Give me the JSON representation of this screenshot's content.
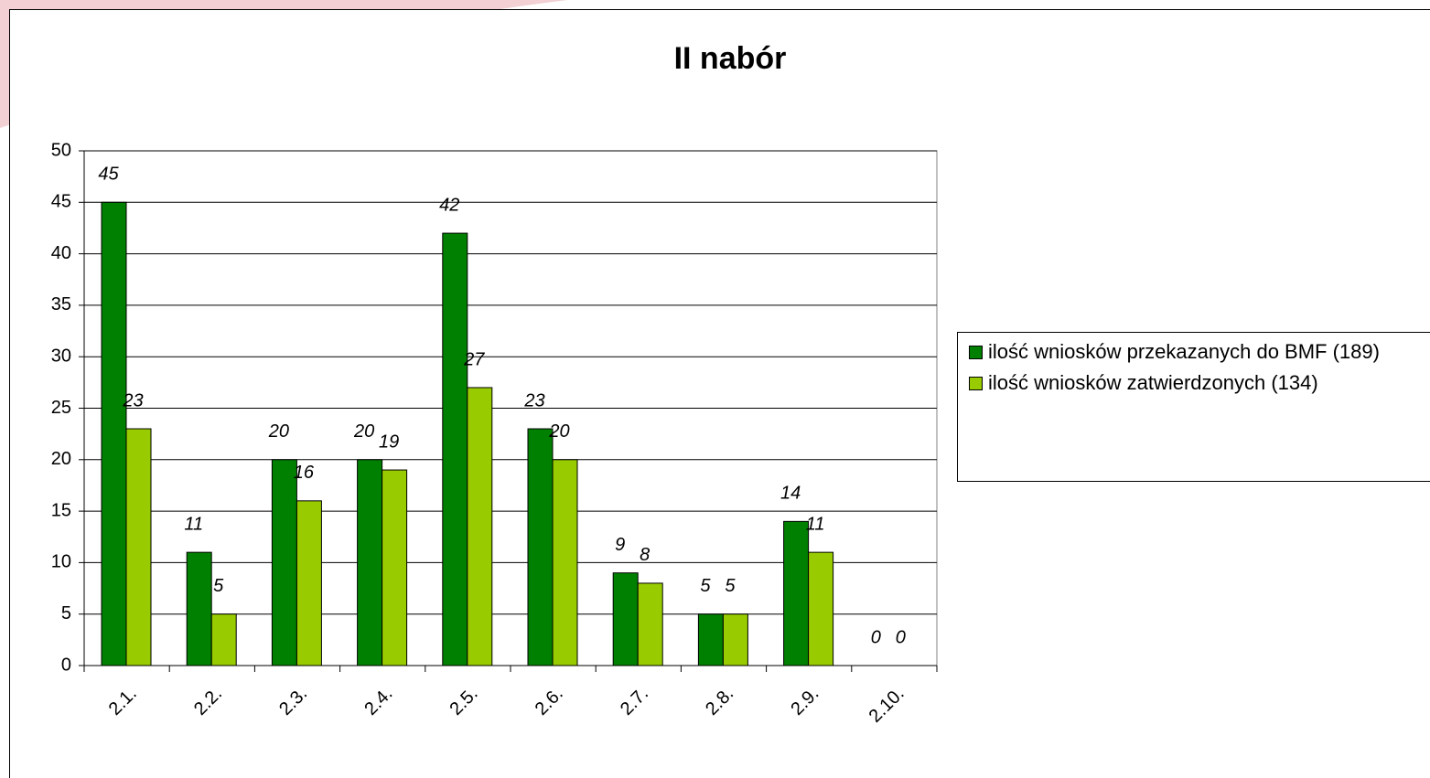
{
  "chart_data": {
    "type": "bar",
    "title": "II nabór",
    "categories": [
      "2.1.",
      "2.2.",
      "2.3.",
      "2.4.",
      "2.5.",
      "2.6.",
      "2.7.",
      "2.8.",
      "2.9.",
      "2.10."
    ],
    "series": [
      {
        "name": "ilość wniosków przekazanych do BMF (189)",
        "color": "#008000",
        "values": [
          45,
          11,
          20,
          20,
          42,
          23,
          9,
          5,
          14,
          0
        ]
      },
      {
        "name": "ilość wniosków zatwierdzonych (134)",
        "color": "#99cc00",
        "values": [
          23,
          5,
          16,
          19,
          27,
          20,
          8,
          5,
          11,
          0
        ]
      }
    ],
    "ylim": [
      0,
      50
    ],
    "yticks": [
      0,
      5,
      10,
      15,
      20,
      25,
      30,
      35,
      40,
      45,
      50
    ],
    "grid": true,
    "legend": "right"
  }
}
